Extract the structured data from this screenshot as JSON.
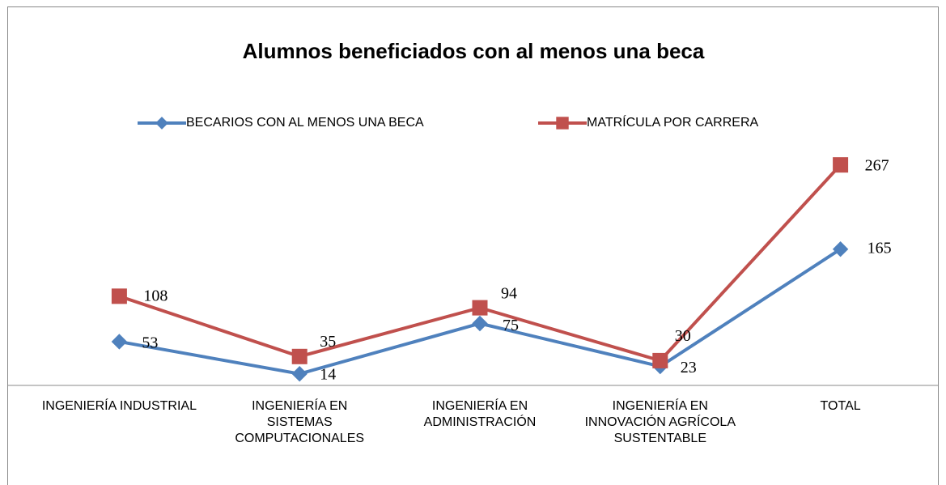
{
  "chart_data": {
    "type": "line",
    "title": "Alumnos beneficiados con al menos una beca",
    "categories": [
      "INGENIERÍA INDUSTRIAL",
      "INGENIERÍA EN SISTEMAS COMPUTACIONALES",
      "INGENIERÍA EN ADMINISTRACIÓN",
      "INGENIERÍA EN INNOVACIÓN AGRÍCOLA SUSTENTABLE",
      "TOTAL"
    ],
    "series": [
      {
        "name": "BECARIOS CON AL MENOS UNA BECA",
        "color": "#4f81bd",
        "marker": "diamond",
        "values": [
          53,
          14,
          75,
          23,
          165
        ]
      },
      {
        "name": "MATRÍCULA POR CARRERA",
        "color": "#c0504d",
        "marker": "square",
        "values": [
          108,
          35,
          94,
          30,
          267
        ]
      }
    ],
    "ylim": [
      0,
      300
    ],
    "legend": "top",
    "grid": false
  }
}
